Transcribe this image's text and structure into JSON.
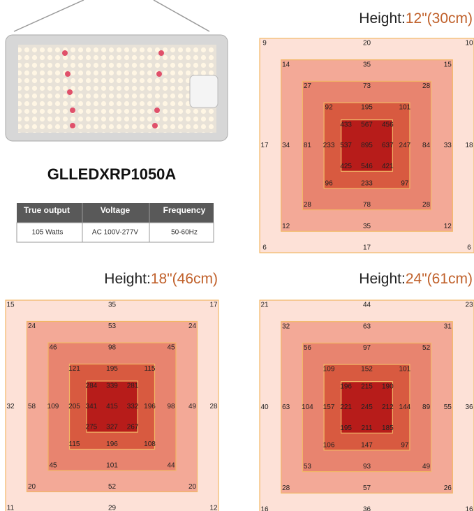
{
  "product": {
    "name": "GLLEDXRP1050A"
  },
  "table": {
    "header": [
      "True output",
      "Voltage",
      "Frequency"
    ],
    "rows": [
      [
        "105 Watts",
        "AC 100V-277V",
        "50-60Hz"
      ]
    ]
  },
  "maps": [
    {
      "label": "Height:",
      "value": "12\"(30cm)",
      "rings": [
        [
          9,
          20,
          10,
          17,
          18,
          6,
          17,
          6
        ],
        [
          14,
          35,
          15,
          34,
          33,
          12,
          35,
          12
        ],
        [
          27,
          73,
          28,
          81,
          84,
          28,
          78,
          28
        ],
        [
          92,
          195,
          101,
          233,
          247,
          96,
          233,
          97
        ],
        [
          433,
          567,
          456,
          537,
          637,
          425,
          546,
          421
        ]
      ],
      "center": 895
    },
    {
      "label": "Height:",
      "value": "18\"(46cm)",
      "rings": [
        [
          15,
          35,
          17,
          32,
          28,
          11,
          29,
          12
        ],
        [
          24,
          53,
          24,
          58,
          49,
          20,
          52,
          20
        ],
        [
          46,
          98,
          45,
          109,
          98,
          45,
          101,
          44
        ],
        [
          121,
          195,
          115,
          205,
          196,
          115,
          196,
          108
        ],
        [
          284,
          339,
          281,
          341,
          332,
          275,
          327,
          267
        ]
      ],
      "center": 415
    },
    {
      "label": "Height:",
      "value": "24\"(61cm)",
      "rings": [
        [
          21,
          44,
          23,
          40,
          36,
          16,
          36,
          16
        ],
        [
          32,
          63,
          31,
          63,
          55,
          28,
          57,
          26
        ],
        [
          56,
          97,
          52,
          104,
          89,
          53,
          93,
          49
        ],
        [
          109,
          152,
          101,
          157,
          144,
          106,
          147,
          97
        ],
        [
          196,
          215,
          190,
          221,
          212,
          195,
          211,
          185
        ]
      ],
      "center": 245
    }
  ]
}
